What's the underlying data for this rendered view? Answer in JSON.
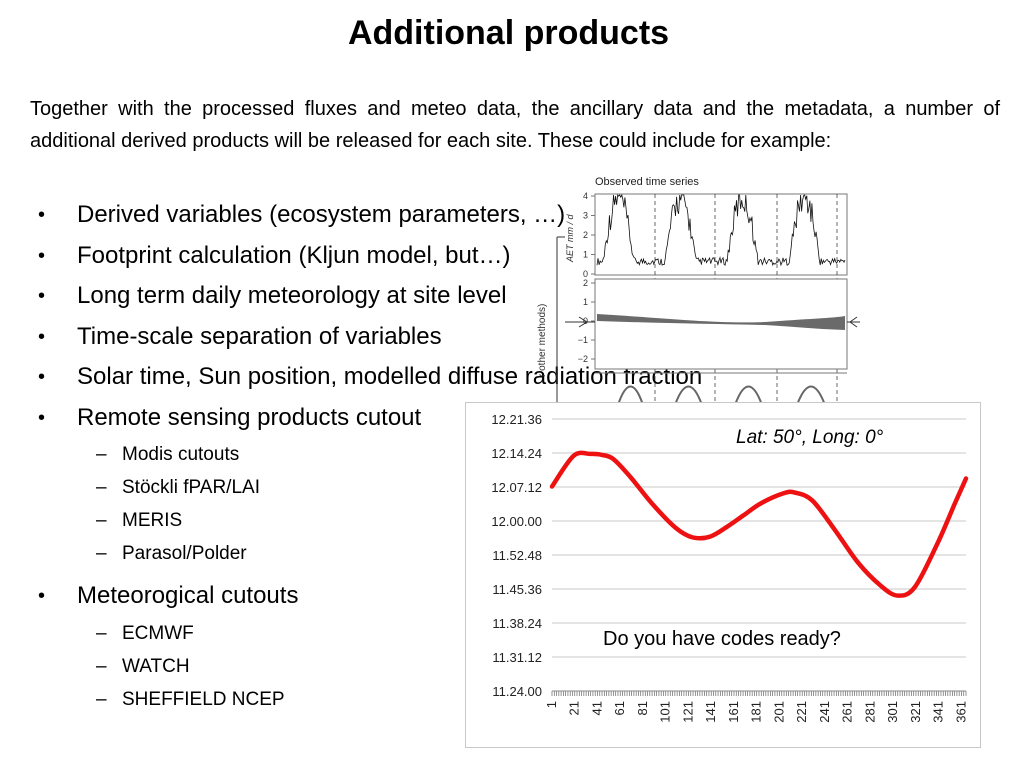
{
  "title": "Additional products",
  "intro": "Together with the processed fluxes and meteo data, the ancillary data and the metadata, a number of additional derived products will be released for each site. These could include for example:",
  "bullets": [
    {
      "text": "Derived variables (ecosystem  parameters, …)",
      "level": 1
    },
    {
      "text": "Footprint calculation (Kljun model, but…)",
      "level": 1
    },
    {
      "text": "Long term daily meteorology at site level",
      "level": 1
    },
    {
      "text": "Time-scale separation of variables",
      "level": 1
    },
    {
      "text": "Solar time, Sun position, modelled diffuse radiation fraction",
      "level": 1
    },
    {
      "text": "Remote sensing products cutout",
      "level": 1
    },
    {
      "text": "Modis cutouts",
      "level": 2
    },
    {
      "text": "Stöckli fPAR/LAI",
      "level": 2
    },
    {
      "text": "MERIS",
      "level": 2
    },
    {
      "text": "Parasol/Polder",
      "level": 2
    },
    {
      "text": "Meteorogical cutouts",
      "level": 1
    },
    {
      "text": "ECMWF",
      "level": 2
    },
    {
      "text": "WATCH",
      "level": 2
    },
    {
      "text": "SHEFFIELD NCEP",
      "level": 2
    }
  ],
  "bullet_markers": {
    "level1": "•",
    "level2": "–"
  },
  "timeseries_figure": {
    "title": "Observed time series",
    "ylabel_top": "AET mm / d",
    "ylabel_middle": "r other methods)",
    "top_ticks": [
      "4",
      "3",
      "2",
      "1",
      "0"
    ],
    "middle_ticks": [
      "2",
      "1",
      "0",
      "−1",
      "−2"
    ]
  },
  "chart_data": {
    "type": "line",
    "title": "",
    "xlabel": "",
    "ylabel": "",
    "annotation": "Lat: 50°, Long: 0°",
    "callout": "Do you have codes ready?",
    "xlim": [
      1,
      365
    ],
    "ylim_minutes": [
      684,
      741.6
    ],
    "x_tick_labels": [
      "1",
      "21",
      "41",
      "61",
      "81",
      "101",
      "121",
      "141",
      "161",
      "181",
      "201",
      "221",
      "241",
      "261",
      "281",
      "301",
      "321",
      "341",
      "361"
    ],
    "y_tick_labels": [
      "12.21.36",
      "12.14.24",
      "12.07.12",
      "12.00.00",
      "11.52.48",
      "11.45.36",
      "11.38.24",
      "11.31.12",
      "11.24.00"
    ],
    "line_color": "#ee1111",
    "series": [
      {
        "x": [
          1,
          20,
          35,
          45,
          55,
          70,
          90,
          110,
          125,
          140,
          155,
          170,
          185,
          205,
          215,
          230,
          250,
          270,
          290,
          305,
          320,
          340,
          355,
          365
        ],
        "values": [
          12.07,
          12.13,
          12.14,
          12.14,
          12.13,
          12.09,
          12.03,
          11.58,
          11.56,
          11.56,
          11.58,
          12.01,
          12.04,
          12.06,
          12.06,
          12.04,
          11.58,
          11.51,
          11.46,
          11.44,
          11.46,
          11.55,
          12.04,
          12.09
        ],
        "values_minutes": [
          727.3,
          733.8,
          734.2,
          734.0,
          733.1,
          729.3,
          723.4,
          718.5,
          716.5,
          716.7,
          718.8,
          721.3,
          723.8,
          725.9,
          726.0,
          724.3,
          718.0,
          711.2,
          706.3,
          704.2,
          706.0,
          715.3,
          723.6,
          729.0
        ]
      }
    ]
  }
}
